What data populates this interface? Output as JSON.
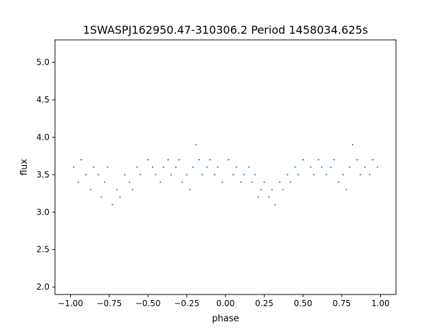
{
  "chart_data": {
    "type": "scatter",
    "title": "1SWASPJ162950.47-310306.2 Period 1458034.625s",
    "xlabel": "phase",
    "ylabel": "flux",
    "xlim": [
      -1.1,
      1.1
    ],
    "ylim": [
      1.9,
      5.3
    ],
    "xticks": [
      -1.0,
      -0.75,
      -0.5,
      -0.25,
      0.0,
      0.25,
      0.5,
      0.75,
      1.0
    ],
    "xtick_labels": [
      "−1.00",
      "−0.75",
      "−0.50",
      "−0.25",
      "0.00",
      "0.25",
      "0.50",
      "0.75",
      "1.00"
    ],
    "yticks": [
      2.0,
      2.5,
      3.0,
      3.5,
      4.0,
      4.5,
      5.0
    ],
    "ytick_labels": [
      "2.0",
      "2.5",
      "3.0",
      "3.5",
      "4.0",
      "4.5",
      "5.0"
    ],
    "grid": false,
    "marker_color": "#1f77b4",
    "series": [
      {
        "x": [
          -0.98,
          -0.95,
          -0.93,
          -0.9,
          -0.87,
          -0.85,
          -0.82,
          -0.8,
          -0.78,
          -0.76,
          -0.73,
          -0.7,
          -0.68,
          -0.65,
          -0.62,
          -0.6,
          -0.57,
          -0.55,
          -0.5,
          -0.47,
          -0.45,
          -0.42,
          -0.4,
          -0.37,
          -0.35,
          -0.32,
          -0.3,
          -0.28,
          -0.25,
          -0.23,
          -0.21,
          -0.19,
          -0.17,
          -0.15,
          -0.12,
          -0.1,
          -0.07,
          -0.05,
          -0.02,
          0.02,
          0.05,
          0.07,
          0.1,
          0.12,
          0.15,
          0.17,
          0.19,
          0.21,
          0.23,
          0.25,
          0.28,
          0.3,
          0.32,
          0.35,
          0.37,
          0.4,
          0.42,
          0.45,
          0.47,
          0.5,
          0.55,
          0.57,
          0.6,
          0.62,
          0.65,
          0.68,
          0.7,
          0.73,
          0.76,
          0.78,
          0.8,
          0.82,
          0.85,
          0.87,
          0.9,
          0.93,
          0.95,
          0.98
        ],
        "y": [
          3.6,
          3.4,
          3.7,
          3.5,
          3.3,
          3.6,
          3.5,
          3.2,
          3.4,
          3.6,
          3.1,
          3.3,
          3.2,
          3.5,
          3.4,
          3.3,
          3.6,
          3.5,
          3.7,
          3.6,
          3.5,
          3.4,
          3.6,
          3.7,
          3.5,
          3.6,
          3.7,
          3.4,
          3.5,
          3.3,
          3.6,
          3.9,
          3.7,
          3.5,
          3.6,
          3.7,
          3.5,
          3.6,
          3.4,
          3.7,
          3.5,
          3.6,
          3.4,
          3.5,
          3.6,
          3.4,
          3.5,
          3.2,
          3.3,
          3.4,
          3.2,
          3.3,
          3.1,
          3.4,
          3.3,
          3.5,
          3.4,
          3.6,
          3.5,
          3.7,
          3.6,
          3.5,
          3.7,
          3.6,
          3.5,
          3.6,
          3.7,
          3.4,
          3.5,
          3.3,
          3.6,
          3.9,
          3.7,
          3.5,
          3.6,
          3.5,
          3.7,
          3.6
        ]
      }
    ]
  }
}
